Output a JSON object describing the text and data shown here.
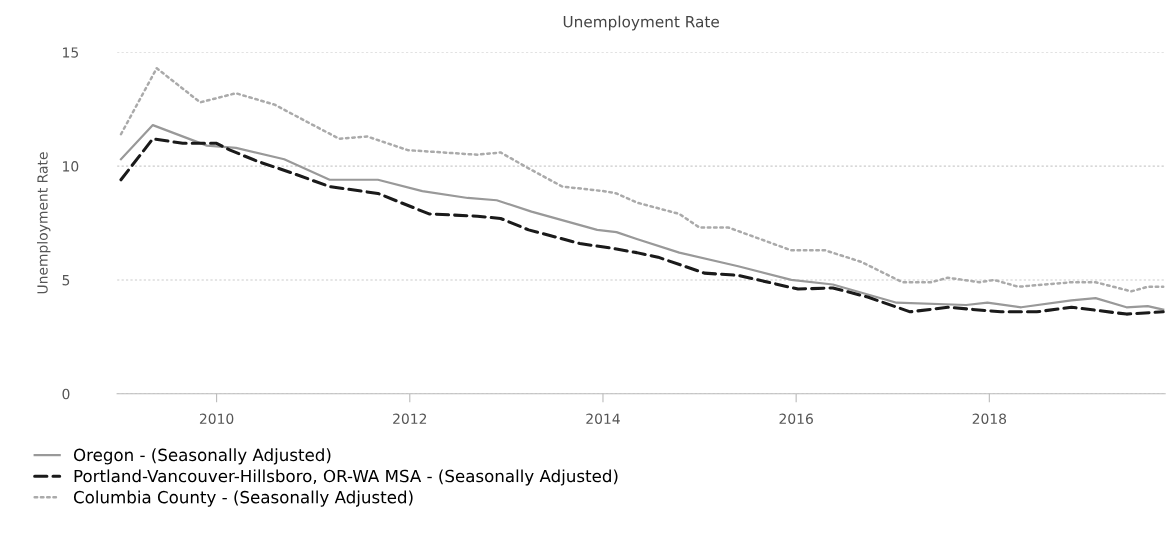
{
  "chart_data": {
    "type": "line",
    "title": "Unemployment Rate",
    "ylabel": "Unemployment Rate",
    "xlim": [
      2008.97,
      2019.82
    ],
    "xticks": [
      2010,
      2012,
      2014,
      2016,
      2018
    ],
    "ylim": [
      0,
      15
    ],
    "yticks": [
      0,
      5,
      10,
      15
    ],
    "grid": "y",
    "legend": "bottom left",
    "marker": "none",
    "series": [
      {
        "name": "Oregon - (Seasonally Adjusted)",
        "color": "#999999",
        "line_style": "solid",
        "x": [
          2009.01,
          2009.34,
          2009.9,
          2010.2,
          2010.7,
          2011.17,
          2011.67,
          2012.13,
          2012.6,
          2012.9,
          2013.26,
          2013.94,
          2014.14,
          2014.35,
          2014.79,
          2015.4,
          2015.95,
          2016.38,
          2017.04,
          2017.76,
          2017.98,
          2018.33,
          2018.85,
          2019.1,
          2019.42,
          2019.64,
          2019.8
        ],
        "values": [
          10.3,
          11.8,
          10.9,
          10.8,
          10.3,
          9.4,
          9.4,
          8.9,
          8.6,
          8.5,
          8.0,
          7.2,
          7.1,
          6.8,
          6.2,
          5.6,
          5.0,
          4.8,
          4.0,
          3.9,
          4.0,
          3.8,
          4.1,
          4.2,
          3.8,
          3.85,
          3.7
        ]
      },
      {
        "name": "Portland-Vancouver-Hillsboro, OR-WA MSA - (Seasonally Adjusted)",
        "color": "#1a1a1a",
        "line_style": "dashed",
        "x": [
          2009.01,
          2009.34,
          2009.65,
          2010.0,
          2010.14,
          2010.43,
          2010.78,
          2011.17,
          2011.67,
          2012.2,
          2012.7,
          2012.94,
          2013.23,
          2013.76,
          2014.08,
          2014.35,
          2014.57,
          2015.05,
          2015.4,
          2016.02,
          2016.38,
          2016.74,
          2017.18,
          2017.57,
          2018.12,
          2018.49,
          2018.85,
          2019.42,
          2019.8
        ],
        "values": [
          9.4,
          11.2,
          11.0,
          11.0,
          10.7,
          10.2,
          9.7,
          9.1,
          8.8,
          7.9,
          7.8,
          7.7,
          7.2,
          6.6,
          6.4,
          6.2,
          6.0,
          5.3,
          5.2,
          4.6,
          4.65,
          4.25,
          3.6,
          3.8,
          3.6,
          3.6,
          3.8,
          3.5,
          3.6
        ]
      },
      {
        "name": "Columbia County - (Seasonally Adjusted)",
        "color": "#aaaaaa",
        "line_style": "dotted",
        "x": [
          2009.01,
          2009.38,
          2009.83,
          2010.2,
          2010.6,
          2011.0,
          2011.27,
          2011.56,
          2011.98,
          2012.7,
          2012.94,
          2013.23,
          2013.58,
          2014.01,
          2014.14,
          2014.35,
          2014.79,
          2015.0,
          2015.3,
          2015.95,
          2016.3,
          2016.67,
          2017.1,
          2017.4,
          2017.57,
          2017.9,
          2018.05,
          2018.3,
          2018.85,
          2019.1,
          2019.47,
          2019.64,
          2019.8
        ],
        "values": [
          11.4,
          14.3,
          12.8,
          13.2,
          12.7,
          11.8,
          11.2,
          11.3,
          10.7,
          10.5,
          10.6,
          9.9,
          9.1,
          8.9,
          8.8,
          8.4,
          7.9,
          7.3,
          7.3,
          6.3,
          6.3,
          5.8,
          4.9,
          4.9,
          5.1,
          4.9,
          5.0,
          4.7,
          4.9,
          4.9,
          4.5,
          4.7,
          4.7
        ]
      }
    ]
  }
}
